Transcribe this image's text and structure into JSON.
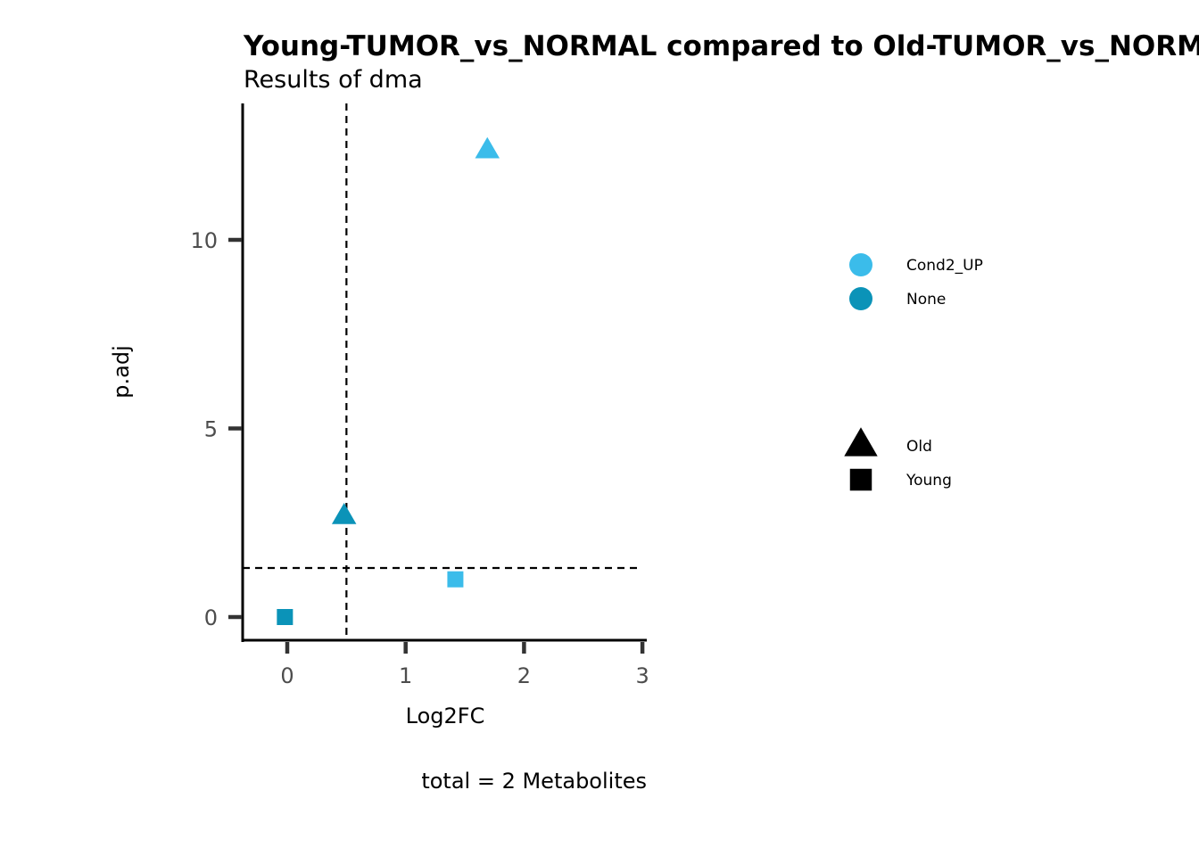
{
  "chart_data": {
    "type": "scatter",
    "title": "Young-TUMOR_vs_NORMAL compared to Old-TUMOR_vs_NORMAL",
    "subtitle": "Results of dma",
    "xlabel": "Log2FC",
    "ylabel": "p.adj",
    "caption": "total = 2 Metabolites",
    "xlim": [
      -0.37,
      3.0
    ],
    "ylim": [
      -0.62,
      13.6
    ],
    "x_ticks": [
      0,
      1,
      2,
      3
    ],
    "y_ticks": [
      0,
      5,
      10
    ],
    "vline_x": 0.5,
    "hline_y": 1.3,
    "grid": false,
    "color_legend": {
      "position": "right",
      "entries": [
        {
          "label": "Cond2_UP",
          "color": "#3bbcea"
        },
        {
          "label": "None",
          "color": "#0b93b8"
        }
      ]
    },
    "shape_legend": {
      "position": "right",
      "entries": [
        {
          "label": "Old",
          "shape": "triangle"
        },
        {
          "label": "Young",
          "shape": "square"
        }
      ]
    },
    "points": [
      {
        "x": 1.69,
        "y": 12.4,
        "group": "Old",
        "status": "Cond2_UP"
      },
      {
        "x": 0.48,
        "y": 2.7,
        "group": "Old",
        "status": "None"
      },
      {
        "x": 1.42,
        "y": 1.0,
        "group": "Young",
        "status": "Cond2_UP"
      },
      {
        "x": -0.02,
        "y": 0.0,
        "group": "Young",
        "status": "None"
      }
    ]
  }
}
